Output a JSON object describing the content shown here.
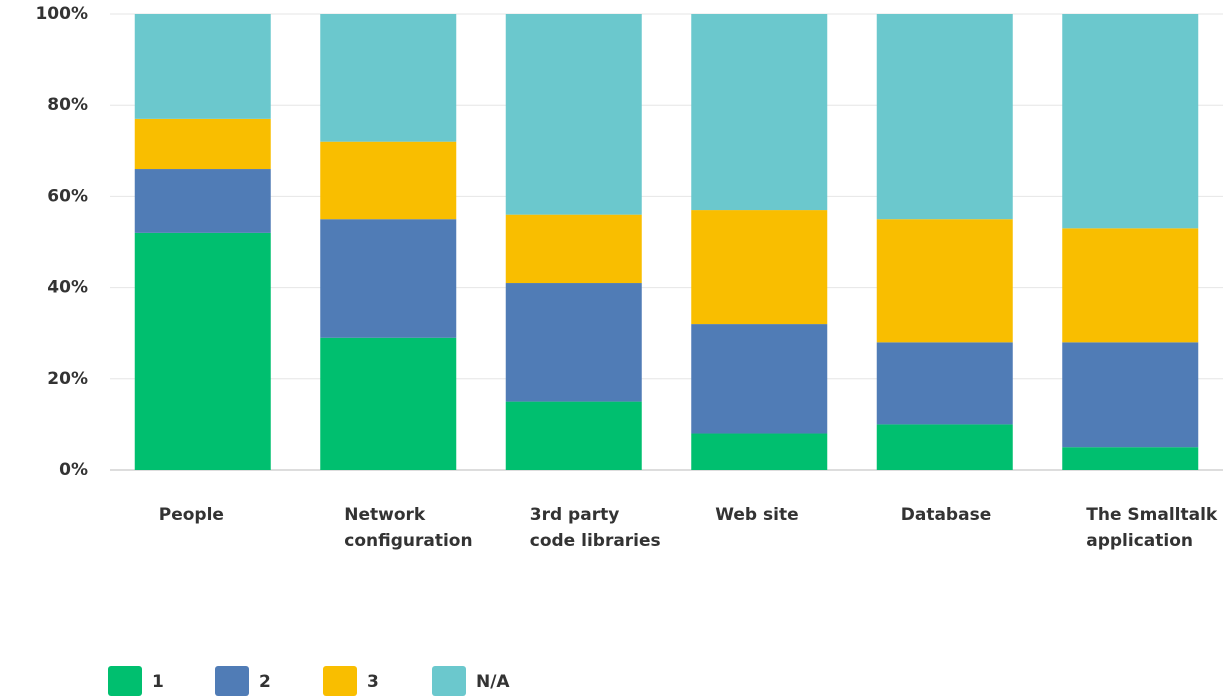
{
  "chart_data": {
    "type": "stacked_bar",
    "categories": [
      "People",
      "Network configuration",
      "3rd party code libraries",
      "Web site",
      "Database",
      "The Smalltalk application"
    ],
    "series": [
      {
        "name": "1",
        "color": "#00bf6f",
        "values": [
          52,
          29,
          15,
          8,
          10,
          5
        ]
      },
      {
        "name": "2",
        "color": "#507cb6",
        "values": [
          14,
          26,
          26,
          24,
          18,
          23
        ]
      },
      {
        "name": "3",
        "color": "#f9be00",
        "values": [
          11,
          17,
          15,
          25,
          27,
          25
        ]
      },
      {
        "name": "N/A",
        "color": "#6bc8cd",
        "values": [
          23,
          28,
          44,
          43,
          45,
          47
        ]
      }
    ],
    "ylim": [
      0,
      100
    ],
    "yticks": [
      {
        "value": 0,
        "label": "0%"
      },
      {
        "value": 20,
        "label": "20%"
      },
      {
        "value": 40,
        "label": "40%"
      },
      {
        "value": 60,
        "label": "60%"
      },
      {
        "value": 80,
        "label": "80%"
      },
      {
        "value": 100,
        "label": "100%"
      }
    ],
    "grid": true,
    "legend": "bottom"
  }
}
